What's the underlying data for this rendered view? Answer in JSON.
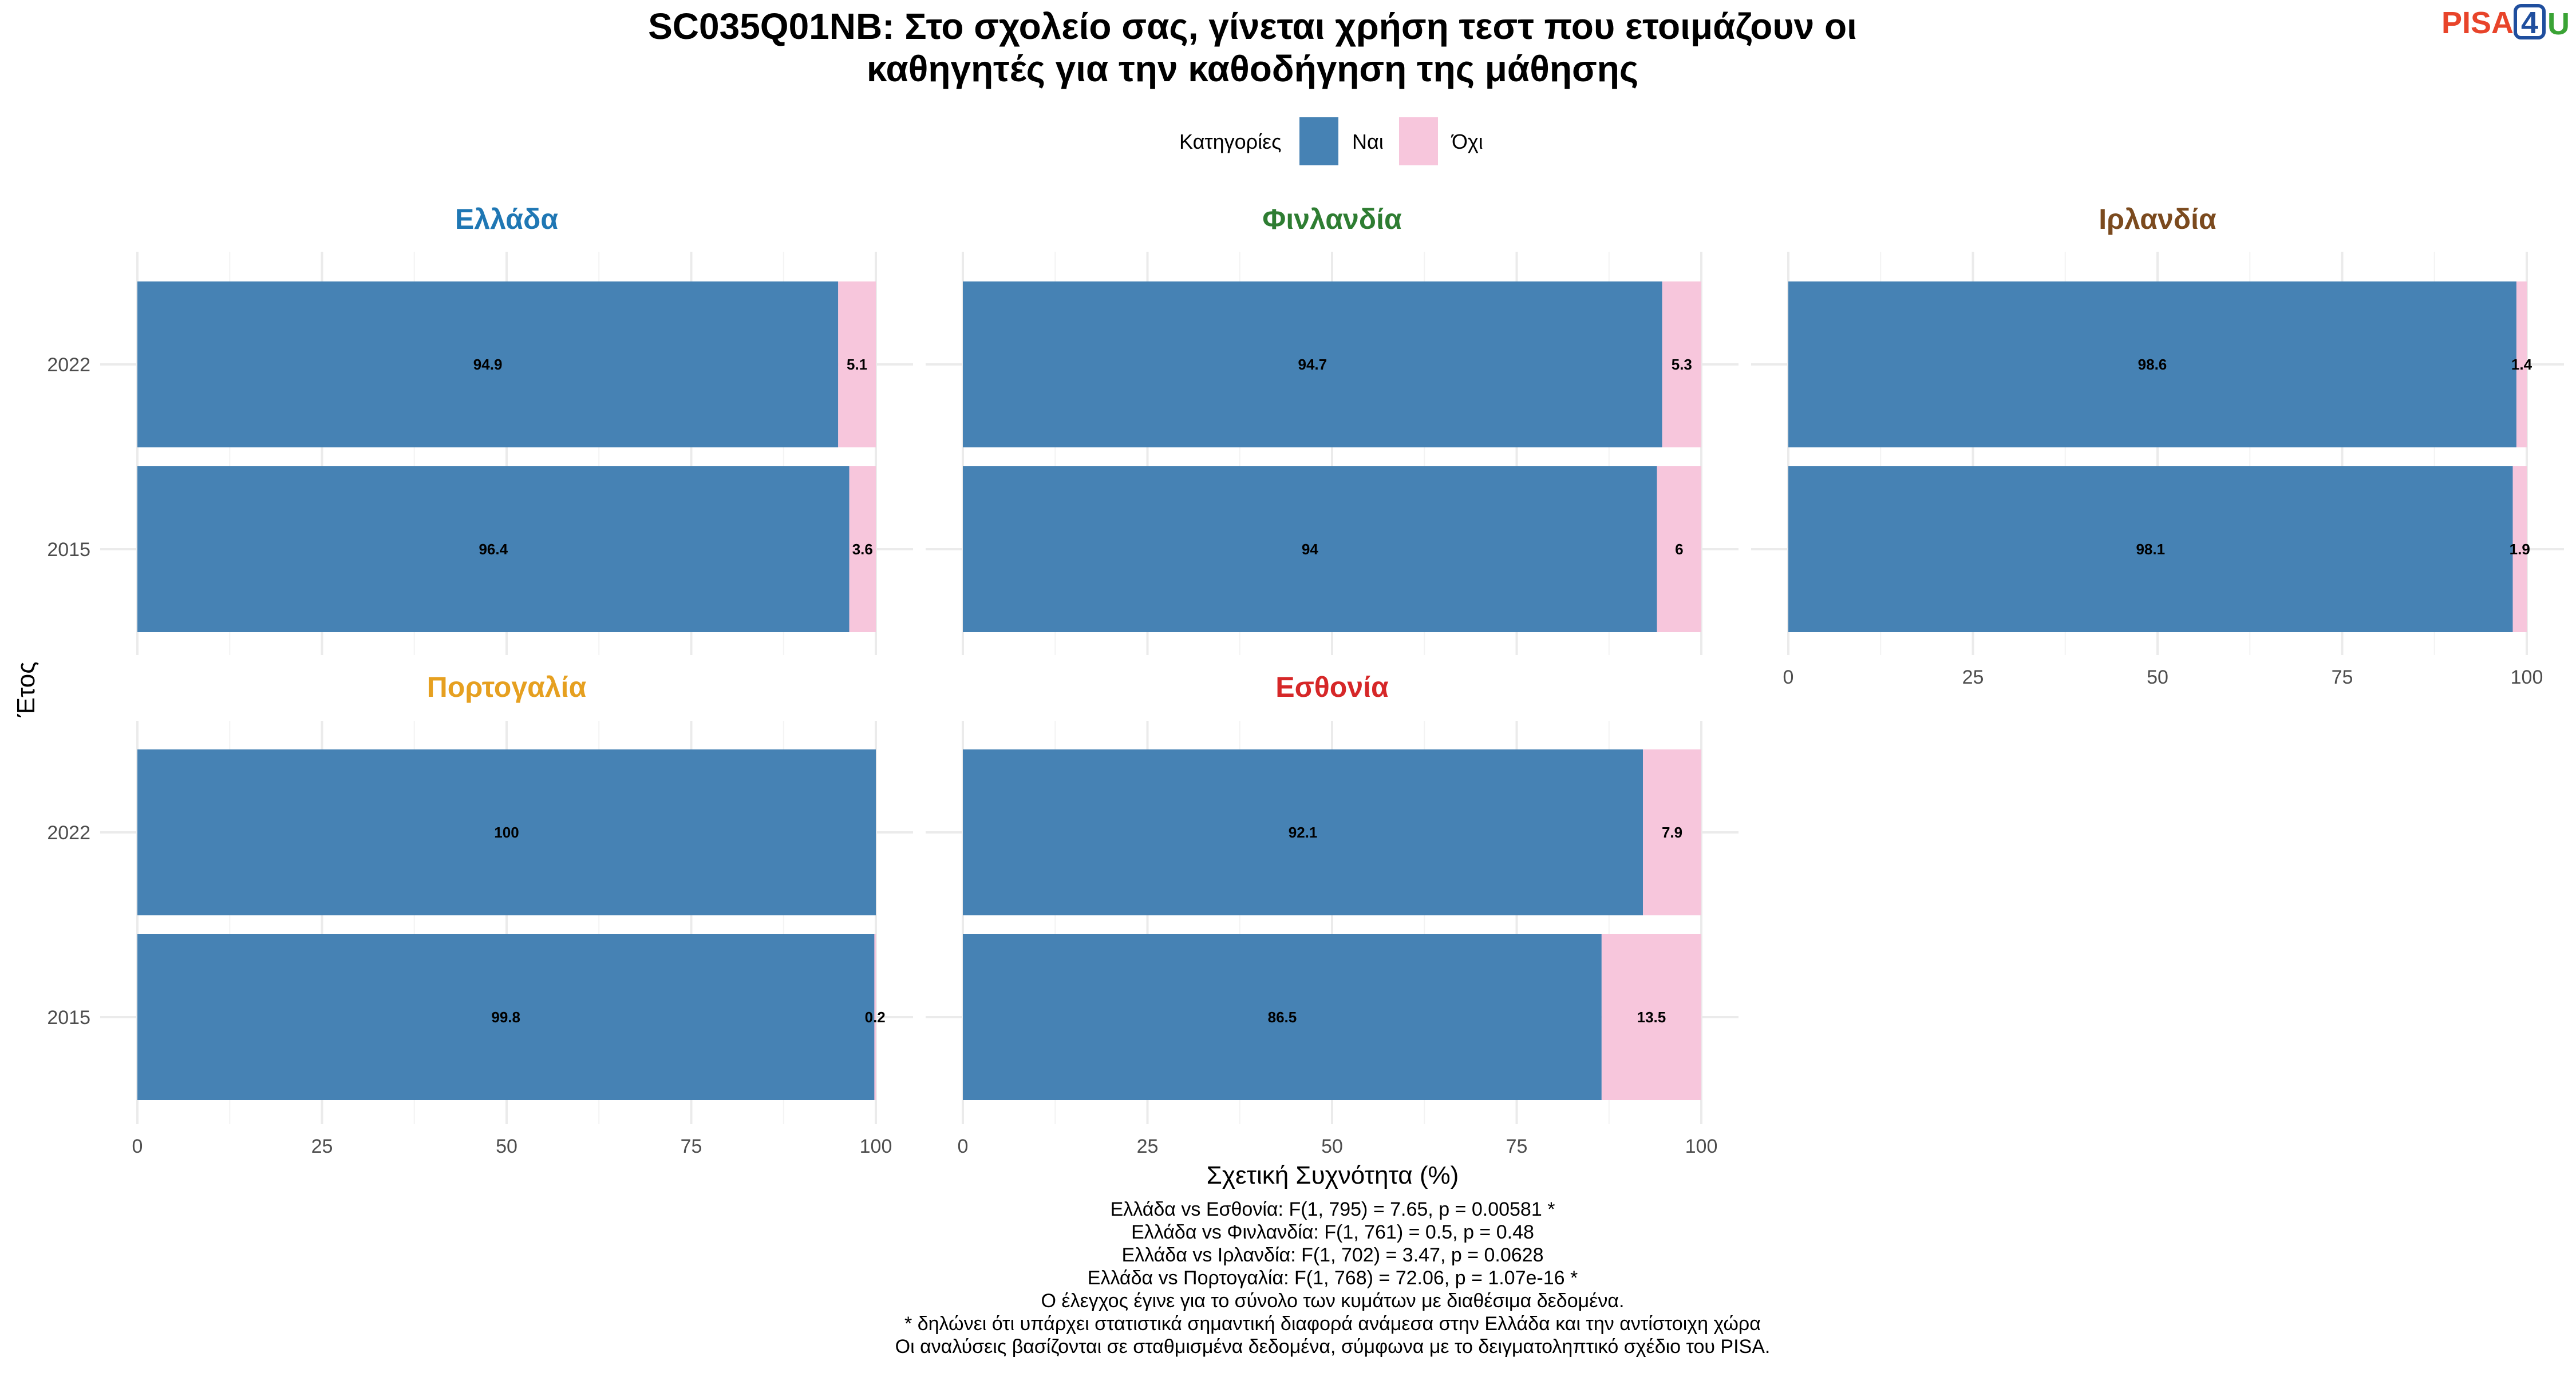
{
  "title_lines": [
    "SC035Q01NB: Στο σχολείο σας, γίνεται χρήση τεστ που ετοιμάζουν οι",
    "καθηγητές για την καθοδήγηση της μάθησης"
  ],
  "logo": {
    "part1": "PISA",
    "part2": "4",
    "part3": "U",
    "color1": "#e8442a",
    "color2": "#1f4e9e",
    "color3": "#3aa335"
  },
  "legend": {
    "title": "Κατηγορίες",
    "items": [
      {
        "label": "Ναι",
        "color": "#4682b4"
      },
      {
        "label": "Όχι",
        "color": "#f7c6dc"
      }
    ],
    "position": "top"
  },
  "chart_data": {
    "type": "bar",
    "orientation": "horizontal",
    "stacked": true,
    "xlabel": "Σχετική Συχνότητα (%)",
    "ylabel": "Έτος",
    "xlim": [
      0,
      100
    ],
    "x_ticks": [
      0,
      25,
      50,
      75,
      100
    ],
    "categories": [
      "2022",
      "2015"
    ],
    "grid": true,
    "series_names": [
      "Ναι",
      "Όχι"
    ],
    "panels": [
      {
        "name": "Ελλάδα",
        "color": "#1f77b4",
        "values": {
          "2022": [
            94.9,
            5.1
          ],
          "2015": [
            96.4,
            3.6
          ]
        },
        "labels": {
          "2022": [
            "94.9",
            "5.1"
          ],
          "2015": [
            "96.4",
            "3.6"
          ]
        }
      },
      {
        "name": "Φινλανδία",
        "color": "#2e7d32",
        "values": {
          "2022": [
            94.7,
            5.3
          ],
          "2015": [
            94.0,
            6.0
          ]
        },
        "labels": {
          "2022": [
            "94.7",
            "5.3"
          ],
          "2015": [
            "94",
            "6"
          ]
        }
      },
      {
        "name": "Ιρλανδία",
        "color": "#7b4a1e",
        "values": {
          "2022": [
            98.6,
            1.4
          ],
          "2015": [
            98.1,
            1.9
          ]
        },
        "labels": {
          "2022": [
            "98.6",
            "1.4"
          ],
          "2015": [
            "98.1",
            "1.9"
          ]
        }
      },
      {
        "name": "Πορτογαλία",
        "color": "#e6a020",
        "values": {
          "2022": [
            100,
            0
          ],
          "2015": [
            99.8,
            0.2
          ]
        },
        "labels": {
          "2022": [
            "100",
            ""
          ],
          "2015": [
            "99.8",
            "0.2"
          ]
        }
      },
      {
        "name": "Εσθονία",
        "color": "#d62728",
        "values": {
          "2022": [
            92.1,
            7.9
          ],
          "2015": [
            86.5,
            13.5
          ]
        },
        "labels": {
          "2022": [
            "92.1",
            "7.9"
          ],
          "2015": [
            "86.5",
            "13.5"
          ]
        }
      }
    ]
  },
  "caption_lines": [
    "Ελλάδα vs Εσθονία: F(1, 795) = 7.65, p = 0.00581 *",
    "Ελλάδα vs Φινλανδία: F(1, 761) = 0.5, p = 0.48",
    "Ελλάδα vs Ιρλανδία: F(1, 702) = 3.47, p = 0.0628",
    "Ελλάδα vs Πορτογαλία: F(1, 768) = 72.06, p = 1.07e-16 *",
    "Ο έλεγχος έγινε για το σύνολο των κυμάτων με διαθέσιμα δεδομένα.",
    "* δηλώνει ότι υπάρχει στατιστικά σημαντική διαφορά ανάμεσα στην Ελλάδα και την αντίστοιχη χώρα",
    "Οι αναλύσεις βασίζονται σε σταθμισμένα δεδομένα, σύμφωνα με το δειγματοληπτικό σχέδιο του PISA."
  ]
}
